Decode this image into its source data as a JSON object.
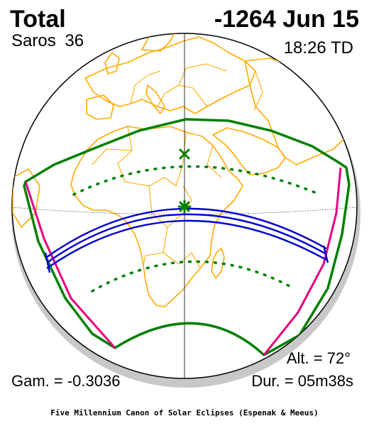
{
  "header": {
    "eclipse_type": "Total",
    "date": "-1264 Jun 15",
    "saros": "Saros 36",
    "time": "18:26 TD"
  },
  "footer": {
    "altitude": "Alt. = 72°",
    "gamma": "Gam. = -0.3036",
    "duration": "Dur. = 05m38s",
    "credit": "Five Millennium Canon of Solar Eclipses (Espenak & Meeus)"
  },
  "colors": {
    "coastline": "#ffaa00",
    "penumbra_limit": "#008000",
    "umbra_path": "#0000cc",
    "rise_set_curve": "#e6007e",
    "globe_shadow": "#c8c8c8",
    "outline": "#000000"
  },
  "icons": {
    "greatest_eclipse": "green-star-marker",
    "subsolar_point": "green-x-marker"
  }
}
